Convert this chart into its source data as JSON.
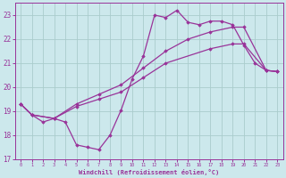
{
  "xlabel": "Windchill (Refroidissement éolien,°C)",
  "xlim": [
    -0.5,
    23.5
  ],
  "ylim": [
    17,
    23.5
  ],
  "yticks": [
    17,
    18,
    19,
    20,
    21,
    22,
    23
  ],
  "xticks": [
    0,
    1,
    2,
    3,
    4,
    5,
    6,
    7,
    8,
    9,
    10,
    11,
    12,
    13,
    14,
    15,
    16,
    17,
    18,
    19,
    20,
    21,
    22,
    23
  ],
  "bg_color": "#cce8ec",
  "grid_color": "#aacccc",
  "line_color": "#993399",
  "line1_x": [
    0,
    1,
    2,
    3,
    4,
    5,
    6,
    7,
    8,
    9,
    10,
    11,
    12,
    13,
    14,
    15,
    16,
    17,
    18,
    19,
    20,
    21,
    22,
    23
  ],
  "line1_y": [
    19.3,
    18.85,
    18.55,
    18.7,
    18.55,
    17.6,
    17.5,
    17.4,
    18.0,
    19.05,
    20.35,
    21.3,
    23.0,
    22.9,
    23.2,
    22.7,
    22.6,
    22.75,
    22.75,
    22.6,
    21.75,
    21.0,
    20.7,
    20.65
  ],
  "line2_x": [
    0,
    1,
    3,
    5,
    7,
    9,
    11,
    13,
    17,
    19,
    20,
    22,
    23
  ],
  "line2_y": [
    19.3,
    18.85,
    18.7,
    19.2,
    19.5,
    19.8,
    20.4,
    21.0,
    21.6,
    21.8,
    21.8,
    20.7,
    20.65
  ],
  "line3_x": [
    0,
    1,
    3,
    5,
    7,
    9,
    11,
    13,
    15,
    17,
    19,
    20,
    22,
    23
  ],
  "line3_y": [
    19.3,
    18.85,
    18.7,
    19.3,
    19.7,
    20.1,
    20.8,
    21.5,
    22.0,
    22.3,
    22.5,
    22.5,
    20.7,
    20.65
  ]
}
